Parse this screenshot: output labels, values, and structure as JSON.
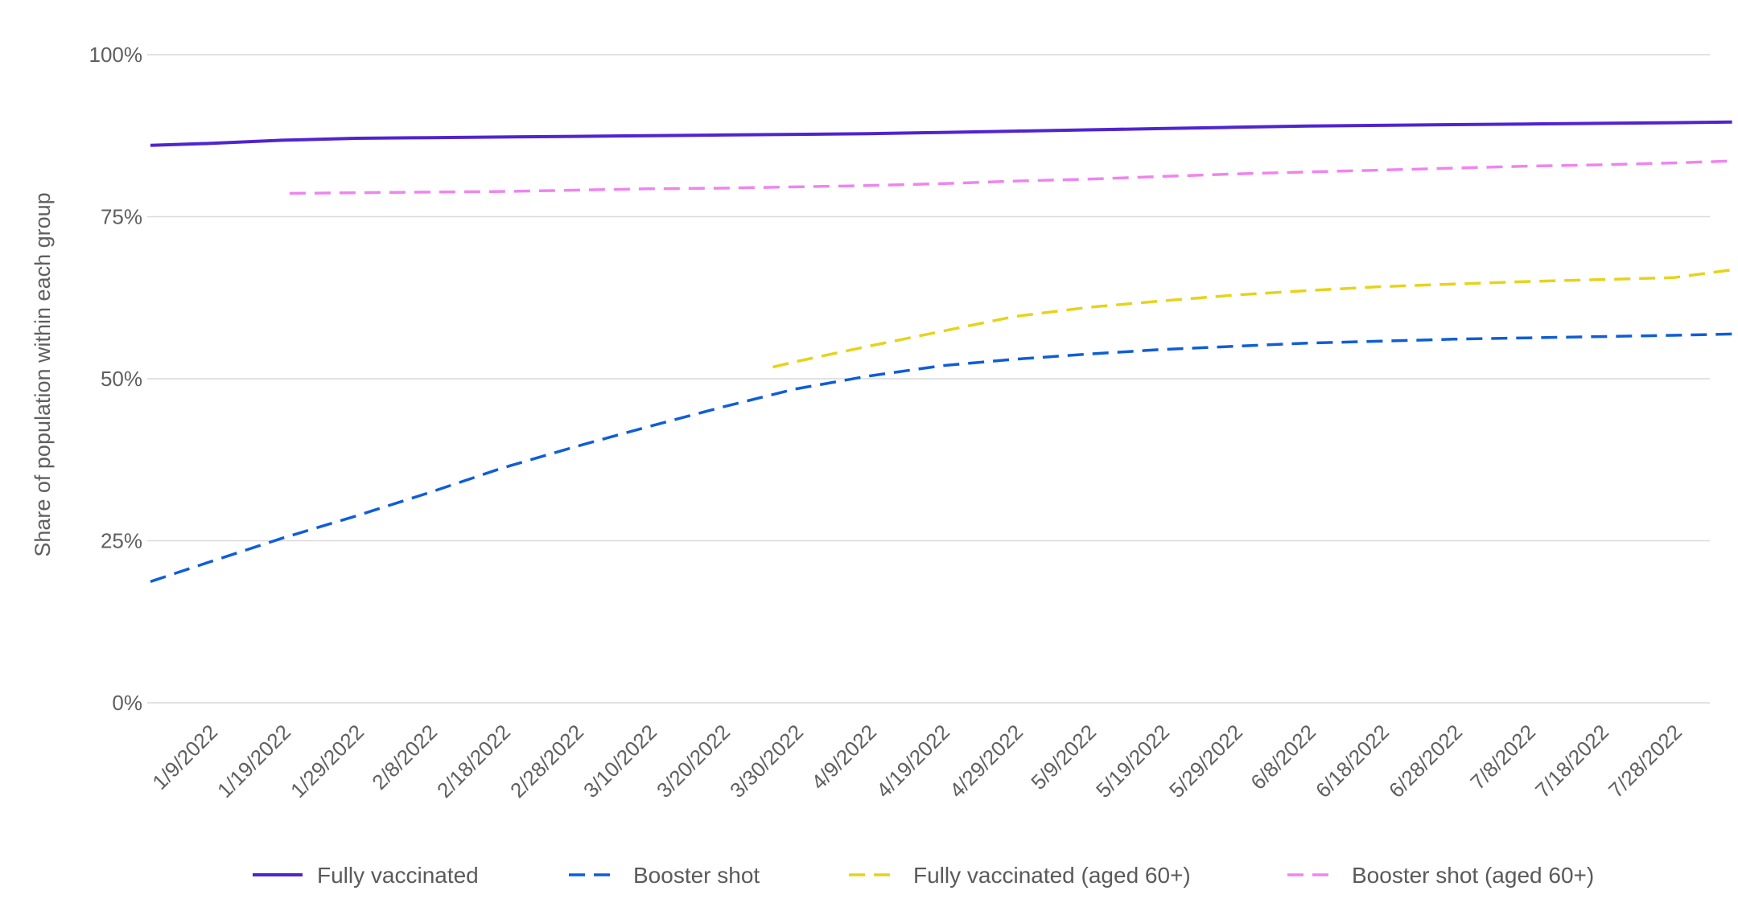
{
  "chart_data": {
    "type": "line",
    "ylabel": "Share of population within each group",
    "xlabel": "",
    "ylim": [
      0,
      100
    ],
    "yticks": [
      0,
      25,
      50,
      75,
      100
    ],
    "ytick_labels": [
      "0%",
      "25%",
      "50%",
      "75%",
      "100%"
    ],
    "x_tick_labels": [
      "1/9/2022",
      "1/19/2022",
      "1/29/2022",
      "2/8/2022",
      "2/18/2022",
      "2/28/2022",
      "3/10/2022",
      "3/20/2022",
      "3/30/2022",
      "4/9/2022",
      "4/19/2022",
      "4/29/2022",
      "5/9/2022",
      "5/19/2022",
      "5/29/2022",
      "6/8/2022",
      "6/18/2022",
      "6/28/2022",
      "7/8/2022",
      "7/18/2022",
      "7/28/2022"
    ],
    "x_range": [
      "1/1/2022",
      "8/5/2022"
    ],
    "grid": "horizontal",
    "legend_position": "bottom",
    "series": [
      {
        "name": "Fully vaccinated",
        "color": "#5024d0",
        "style": "solid",
        "points": [
          [
            "1/1/2022",
            86.0
          ],
          [
            "1/9/2022",
            86.3
          ],
          [
            "1/19/2022",
            86.8
          ],
          [
            "1/29/2022",
            87.1
          ],
          [
            "2/8/2022",
            87.2
          ],
          [
            "2/18/2022",
            87.3
          ],
          [
            "2/28/2022",
            87.4
          ],
          [
            "3/10/2022",
            87.5
          ],
          [
            "3/20/2022",
            87.6
          ],
          [
            "3/30/2022",
            87.7
          ],
          [
            "4/9/2022",
            87.8
          ],
          [
            "4/19/2022",
            88.0
          ],
          [
            "4/29/2022",
            88.2
          ],
          [
            "5/9/2022",
            88.4
          ],
          [
            "5/19/2022",
            88.6
          ],
          [
            "5/29/2022",
            88.8
          ],
          [
            "6/8/2022",
            89.0
          ],
          [
            "6/18/2022",
            89.1
          ],
          [
            "6/28/2022",
            89.2
          ],
          [
            "7/8/2022",
            89.3
          ],
          [
            "7/18/2022",
            89.4
          ],
          [
            "7/28/2022",
            89.5
          ],
          [
            "8/5/2022",
            89.6
          ]
        ]
      },
      {
        "name": "Booster shot",
        "color": "#0f5ed6",
        "style": "dashed",
        "points": [
          [
            "1/1/2022",
            18.7
          ],
          [
            "1/9/2022",
            21.7
          ],
          [
            "1/19/2022",
            25.4
          ],
          [
            "1/29/2022",
            28.8
          ],
          [
            "2/8/2022",
            32.4
          ],
          [
            "2/18/2022",
            36.2
          ],
          [
            "2/28/2022",
            39.5
          ],
          [
            "3/10/2022",
            42.6
          ],
          [
            "3/20/2022",
            45.6
          ],
          [
            "3/30/2022",
            48.4
          ],
          [
            "4/9/2022",
            50.4
          ],
          [
            "4/19/2022",
            52.0
          ],
          [
            "4/29/2022",
            53.0
          ],
          [
            "5/9/2022",
            53.8
          ],
          [
            "5/19/2022",
            54.5
          ],
          [
            "5/29/2022",
            55.0
          ],
          [
            "6/8/2022",
            55.5
          ],
          [
            "6/18/2022",
            55.8
          ],
          [
            "6/28/2022",
            56.1
          ],
          [
            "7/8/2022",
            56.3
          ],
          [
            "7/18/2022",
            56.5
          ],
          [
            "7/28/2022",
            56.7
          ],
          [
            "8/5/2022",
            56.9
          ]
        ]
      },
      {
        "name": "Fully vaccinated (aged 60+)",
        "color": "#e6d31a",
        "style": "dashed",
        "points": [
          [
            "3/27/2022",
            51.8
          ],
          [
            "3/30/2022",
            52.6
          ],
          [
            "4/9/2022",
            55.0
          ],
          [
            "4/19/2022",
            57.3
          ],
          [
            "4/29/2022",
            59.6
          ],
          [
            "5/9/2022",
            61.0
          ],
          [
            "5/19/2022",
            62.0
          ],
          [
            "5/29/2022",
            62.9
          ],
          [
            "6/8/2022",
            63.6
          ],
          [
            "6/18/2022",
            64.2
          ],
          [
            "6/28/2022",
            64.6
          ],
          [
            "7/8/2022",
            65.0
          ],
          [
            "7/18/2022",
            65.3
          ],
          [
            "7/28/2022",
            65.6
          ],
          [
            "8/5/2022",
            66.8
          ]
        ]
      },
      {
        "name": "Booster shot (aged 60+)",
        "color": "#ef84f0",
        "style": "dashed",
        "points": [
          [
            "1/20/2022",
            78.6
          ],
          [
            "1/29/2022",
            78.7
          ],
          [
            "2/8/2022",
            78.8
          ],
          [
            "2/18/2022",
            78.9
          ],
          [
            "2/28/2022",
            79.1
          ],
          [
            "3/10/2022",
            79.3
          ],
          [
            "3/20/2022",
            79.4
          ],
          [
            "3/30/2022",
            79.6
          ],
          [
            "4/9/2022",
            79.8
          ],
          [
            "4/19/2022",
            80.1
          ],
          [
            "4/29/2022",
            80.5
          ],
          [
            "5/9/2022",
            80.8
          ],
          [
            "5/19/2022",
            81.2
          ],
          [
            "5/29/2022",
            81.6
          ],
          [
            "6/8/2022",
            81.9
          ],
          [
            "6/18/2022",
            82.2
          ],
          [
            "6/28/2022",
            82.5
          ],
          [
            "7/8/2022",
            82.8
          ],
          [
            "7/18/2022",
            83.0
          ],
          [
            "7/28/2022",
            83.3
          ],
          [
            "8/5/2022",
            83.6
          ]
        ]
      }
    ]
  }
}
